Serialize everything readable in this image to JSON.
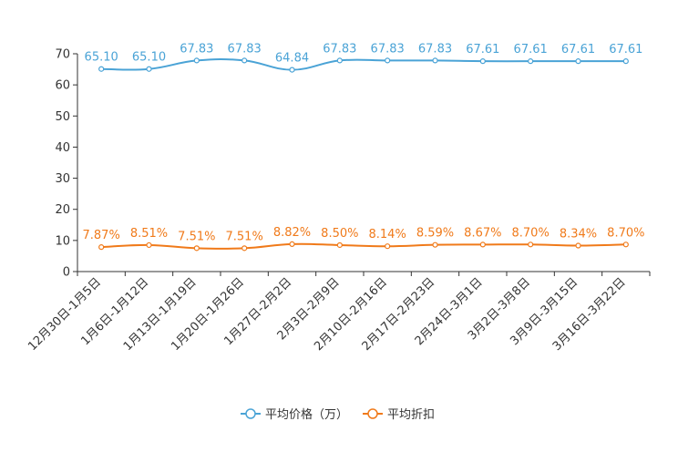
{
  "chart_data": {
    "type": "line",
    "title": "",
    "xlabel": "",
    "ylabel": "",
    "ylim": [
      0,
      70
    ],
    "yticks": [
      0,
      10,
      20,
      30,
      40,
      50,
      60,
      70
    ],
    "categories": [
      "12月30日-1月5日",
      "1月6日-1月12日",
      "1月13日-1月19日",
      "1月20日-1月26日",
      "1月27日-2月2日",
      "2月3日-2月9日",
      "2月10日-2月16日",
      "2月17日-2月23日",
      "2月24日-3月1日",
      "3月2日-3月8日",
      "3月9日-3月15日",
      "3月16日-3月22日"
    ],
    "series": [
      {
        "name": "平均价格（万）",
        "color": "#4aa3d6",
        "values": [
          65.1,
          65.1,
          67.83,
          67.83,
          64.84,
          67.83,
          67.83,
          67.83,
          67.61,
          67.61,
          67.61,
          67.61
        ],
        "labels": [
          "65.10",
          "65.10",
          "67.83",
          "67.83",
          "64.84",
          "67.83",
          "67.83",
          "67.83",
          "67.61",
          "67.61",
          "67.61",
          "67.61"
        ]
      },
      {
        "name": "平均折扣",
        "color": "#f07a1a",
        "values": [
          7.87,
          8.51,
          7.51,
          7.51,
          8.82,
          8.5,
          8.14,
          8.59,
          8.67,
          8.7,
          8.34,
          8.7
        ],
        "labels": [
          "7.87%",
          "8.51%",
          "7.51%",
          "7.51%",
          "8.82%",
          "8.50%",
          "8.14%",
          "8.59%",
          "8.67%",
          "8.70%",
          "8.34%",
          "8.70%"
        ]
      }
    ],
    "legend_position": "bottom-center",
    "grid": false
  }
}
